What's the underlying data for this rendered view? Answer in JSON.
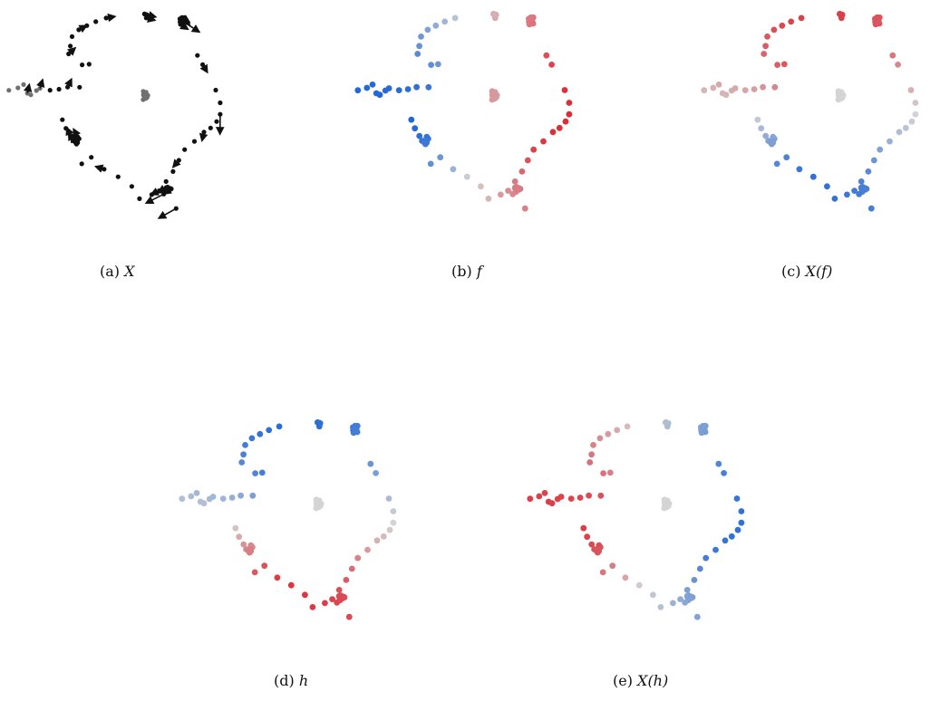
{
  "captions": {
    "a": {
      "label": "(a)",
      "math": "X"
    },
    "b": {
      "label": "(b)",
      "math": "f"
    },
    "c": {
      "label": "(c)",
      "math": "X(f)"
    },
    "d": {
      "label": "(d)",
      "math": "h"
    },
    "e": {
      "label": "(e)",
      "math": "X(h)"
    }
  },
  "colors": {
    "blue": "#1f66d6",
    "red": "#dc2c37",
    "neutral": "#d4d4d4",
    "black": "#111111",
    "gray": "#707070"
  }
}
